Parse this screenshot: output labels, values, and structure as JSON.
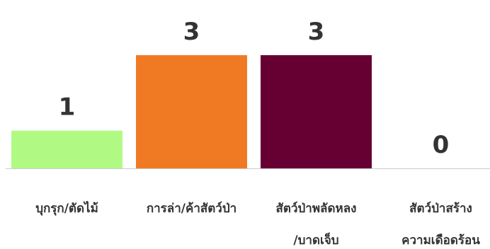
{
  "chart_data": {
    "type": "bar",
    "categories": [
      [
        "บุกรุก/ตัดไม้"
      ],
      [
        "การล่า/ค้าสัตว์ป่า"
      ],
      [
        "สัตว์ป่าพลัดหลง",
        "/บาดเจ็บ"
      ],
      [
        "สัตว์ป่าสร้าง",
        "ความเดือดร้อน"
      ]
    ],
    "values": [
      1,
      3,
      3,
      0
    ],
    "colors": [
      "#b0fa84",
      "#f07a24",
      "#660033",
      "#cccccc"
    ],
    "title": "",
    "xlabel": "",
    "ylabel": "",
    "ylim": [
      0,
      3
    ],
    "grid": false,
    "legend": "none",
    "data_labels": true,
    "baseline_color": "#cccccc"
  }
}
